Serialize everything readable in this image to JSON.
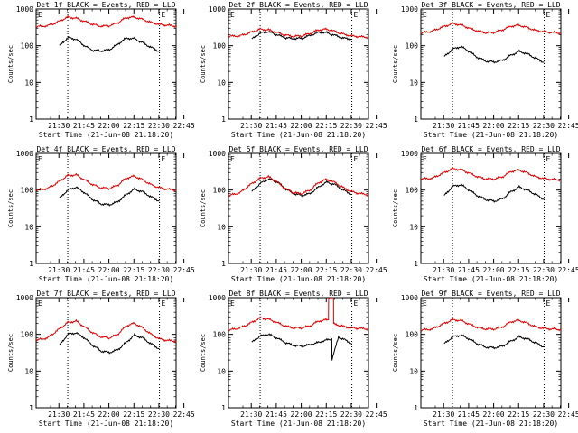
{
  "chart_data": [
    {
      "type": "line",
      "title": "Det 1f BLACK = Events, RED = LLD",
      "xlabel": "Start Time (21-Jun-08 21:18:20)",
      "ylabel": "Counts/sec",
      "y_scale": "log",
      "ylim": [
        1,
        1000
      ],
      "y_ticks": [
        "1",
        "10",
        "100",
        "1000"
      ],
      "x_ticks": [
        "21:30",
        "21:45",
        "22:00",
        "22:15",
        "22:30",
        "22:45"
      ],
      "xlim_min": [
        -2,
        82
      ],
      "markers": [
        "E",
        "E"
      ],
      "marker_lines_min": [
        17,
        72
      ],
      "series": [
        {
          "color": "#000000",
          "x": [
            12,
            17,
            22,
            27,
            32,
            37,
            42,
            47,
            52,
            57,
            62,
            67,
            72
          ],
          "y": [
            100,
            165,
            150,
            100,
            75,
            72,
            78,
            110,
            160,
            155,
            120,
            90,
            70
          ]
        },
        {
          "color": "#e00000",
          "x": [
            -2,
            5,
            10,
            17,
            22,
            27,
            32,
            37,
            42,
            47,
            52,
            57,
            62,
            67,
            72,
            77,
            82
          ],
          "y": [
            330,
            350,
            420,
            600,
            560,
            460,
            380,
            340,
            350,
            420,
            580,
            600,
            520,
            430,
            380,
            360,
            340
          ]
        }
      ]
    },
    {
      "type": "line",
      "title": "Det 2f BLACK = Events, RED = LLD",
      "xlabel": "Start Time (21-Jun-08 21:18:20)",
      "ylabel": "Counts/sec",
      "y_scale": "log",
      "ylim": [
        1,
        1000
      ],
      "y_ticks": [
        "1",
        "10",
        "100",
        "1000"
      ],
      "x_ticks": [
        "21:30",
        "21:45",
        "22:00",
        "22:15",
        "22:30",
        "22:45"
      ],
      "xlim_min": [
        -2,
        82
      ],
      "markers": [
        "E",
        "E"
      ],
      "marker_lines_min": [
        17,
        72
      ],
      "series": [
        {
          "color": "#000000",
          "x": [
            12,
            17,
            22,
            27,
            32,
            37,
            42,
            47,
            52,
            57,
            62,
            67,
            72
          ],
          "y": [
            150,
            220,
            240,
            200,
            165,
            155,
            160,
            190,
            230,
            225,
            190,
            160,
            150
          ]
        },
        {
          "color": "#e00000",
          "x": [
            -2,
            5,
            10,
            17,
            22,
            27,
            32,
            37,
            42,
            47,
            52,
            57,
            62,
            67,
            72,
            77,
            82
          ],
          "y": [
            180,
            185,
            220,
            280,
            270,
            230,
            195,
            180,
            185,
            215,
            270,
            280,
            245,
            205,
            185,
            175,
            170
          ]
        }
      ]
    },
    {
      "type": "line",
      "title": "Det 3f BLACK = Events, RED = LLD",
      "xlabel": "Start Time (21-Jun-08 21:18:20)",
      "ylabel": "Counts/sec",
      "y_scale": "log",
      "ylim": [
        1,
        1000
      ],
      "y_ticks": [
        "1",
        "10",
        "100",
        "1000"
      ],
      "x_ticks": [
        "21:30",
        "21:45",
        "22:00",
        "22:15",
        "22:30",
        "22:45"
      ],
      "xlim_min": [
        -2,
        82
      ],
      "markers": [
        "E",
        "E"
      ],
      "marker_lines_min": [
        17,
        72
      ],
      "series": [
        {
          "color": "#000000",
          "x": [
            12,
            17,
            22,
            27,
            32,
            37,
            42,
            47,
            52,
            57,
            62,
            67,
            72
          ],
          "y": [
            50,
            80,
            95,
            70,
            48,
            38,
            36,
            40,
            55,
            70,
            60,
            45,
            35
          ]
        },
        {
          "color": "#e00000",
          "x": [
            -2,
            5,
            10,
            17,
            22,
            27,
            32,
            37,
            42,
            47,
            52,
            57,
            62,
            67,
            72,
            77,
            82
          ],
          "y": [
            220,
            250,
            310,
            400,
            370,
            300,
            250,
            225,
            230,
            270,
            340,
            360,
            310,
            260,
            240,
            230,
            220
          ]
        }
      ]
    },
    {
      "type": "line",
      "title": "Det 4f BLACK = Events, RED = LLD",
      "xlabel": "Start Time (21-Jun-08 21:18:20)",
      "ylabel": "Counts/sec",
      "y_scale": "log",
      "ylim": [
        1,
        1000
      ],
      "y_ticks": [
        "1",
        "10",
        "100",
        "1000"
      ],
      "x_ticks": [
        "21:30",
        "21:45",
        "22:00",
        "22:15",
        "22:30",
        "22:45"
      ],
      "xlim_min": [
        -2,
        82
      ],
      "markers": [
        "E",
        "E"
      ],
      "marker_lines_min": [
        17,
        72
      ],
      "series": [
        {
          "color": "#000000",
          "x": [
            12,
            17,
            22,
            27,
            32,
            37,
            42,
            47,
            52,
            57,
            62,
            67,
            72
          ],
          "y": [
            60,
            100,
            120,
            85,
            55,
            42,
            40,
            48,
            75,
            105,
            90,
            65,
            50
          ]
        },
        {
          "color": "#e00000",
          "x": [
            -2,
            5,
            10,
            17,
            22,
            27,
            32,
            37,
            42,
            47,
            52,
            57,
            62,
            67,
            72,
            77,
            82
          ],
          "y": [
            100,
            110,
            150,
            250,
            260,
            190,
            140,
            115,
            110,
            135,
            210,
            240,
            190,
            140,
            115,
            105,
            100
          ]
        }
      ]
    },
    {
      "type": "line",
      "title": "Det 5f BLACK = Events, RED = LLD",
      "xlabel": "Start Time (21-Jun-08 21:18:20)",
      "ylabel": "Counts/sec",
      "y_scale": "log",
      "ylim": [
        1,
        1000
      ],
      "y_ticks": [
        "1",
        "10",
        "100",
        "1000"
      ],
      "x_ticks": [
        "21:30",
        "21:45",
        "22:00",
        "22:15",
        "22:30",
        "22:45"
      ],
      "xlim_min": [
        -2,
        82
      ],
      "markers": [
        "E",
        "E"
      ],
      "marker_lines_min": [
        17,
        72
      ],
      "series": [
        {
          "color": "#000000",
          "x": [
            12,
            17,
            22,
            27,
            32,
            37,
            42,
            47,
            52,
            57,
            62,
            67,
            72
          ],
          "y": [
            90,
            150,
            200,
            170,
            110,
            80,
            72,
            80,
            120,
            165,
            140,
            100,
            75
          ]
        },
        {
          "color": "#e00000",
          "x": [
            -2,
            5,
            10,
            17,
            22,
            27,
            32,
            37,
            42,
            47,
            52,
            57,
            62,
            67,
            72,
            77,
            82
          ],
          "y": [
            70,
            85,
            130,
            210,
            230,
            170,
            110,
            85,
            80,
            100,
            160,
            195,
            160,
            115,
            90,
            80,
            75
          ]
        }
      ]
    },
    {
      "type": "line",
      "title": "Det 6f BLACK = Events, RED = LLD",
      "xlabel": "Start Time (21-Jun-08 21:18:20)",
      "ylabel": "Counts/sec",
      "y_scale": "log",
      "ylim": [
        1,
        1000
      ],
      "y_ticks": [
        "1",
        "10",
        "100",
        "1000"
      ],
      "x_ticks": [
        "21:30",
        "21:45",
        "22:00",
        "22:15",
        "22:30",
        "22:45"
      ],
      "xlim_min": [
        -2,
        82
      ],
      "markers": [
        "E",
        "E"
      ],
      "marker_lines_min": [
        17,
        72
      ],
      "series": [
        {
          "color": "#000000",
          "x": [
            12,
            17,
            22,
            27,
            32,
            37,
            42,
            47,
            52,
            57,
            62,
            67,
            72
          ],
          "y": [
            70,
            125,
            140,
            100,
            70,
            55,
            50,
            58,
            90,
            120,
            100,
            75,
            55
          ]
        },
        {
          "color": "#e00000",
          "x": [
            -2,
            5,
            10,
            17,
            22,
            27,
            32,
            37,
            42,
            47,
            52,
            57,
            62,
            67,
            72,
            77,
            82
          ],
          "y": [
            200,
            210,
            270,
            380,
            360,
            290,
            230,
            200,
            200,
            230,
            320,
            350,
            290,
            230,
            205,
            195,
            190
          ]
        }
      ]
    },
    {
      "type": "line",
      "title": "Det 7f BLACK = Events, RED = LLD",
      "xlabel": "Start Time (21-Jun-08 21:18:20)",
      "ylabel": "Counts/sec",
      "y_scale": "log",
      "ylim": [
        1,
        1000
      ],
      "y_ticks": [
        "1",
        "10",
        "100",
        "1000"
      ],
      "x_ticks": [
        "21:30",
        "21:45",
        "22:00",
        "22:15",
        "22:30",
        "22:45"
      ],
      "xlim_min": [
        -2,
        82
      ],
      "markers": [
        "E",
        "E"
      ],
      "marker_lines_min": [
        17,
        72
      ],
      "series": [
        {
          "color": "#000000",
          "x": [
            12,
            17,
            22,
            27,
            32,
            37,
            42,
            47,
            52,
            57,
            62,
            67,
            72
          ],
          "y": [
            50,
            100,
            110,
            80,
            50,
            35,
            32,
            38,
            60,
            95,
            80,
            55,
            40
          ]
        },
        {
          "color": "#e00000",
          "x": [
            -2,
            5,
            10,
            17,
            22,
            27,
            32,
            37,
            42,
            47,
            52,
            57,
            62,
            67,
            72,
            77,
            82
          ],
          "y": [
            70,
            80,
            120,
            210,
            230,
            160,
            110,
            85,
            80,
            100,
            170,
            200,
            150,
            100,
            75,
            68,
            65
          ]
        }
      ]
    },
    {
      "type": "line",
      "title": "Det 8f BLACK = Events, RED = LLD",
      "xlabel": "Start Time (21-Jun-08 21:18:20)",
      "ylabel": "Counts/sec",
      "y_scale": "log",
      "ylim": [
        1,
        1000
      ],
      "y_ticks": [
        "1",
        "10",
        "100",
        "1000"
      ],
      "x_ticks": [
        "21:30",
        "21:45",
        "22:00",
        "22:15",
        "22:30",
        "22:45"
      ],
      "xlim_min": [
        -2,
        82
      ],
      "markers": [
        "E",
        "E"
      ],
      "marker_lines_min": [
        17,
        72
      ],
      "series": [
        {
          "color": "#000000",
          "x": [
            12,
            17,
            22,
            27,
            32,
            37,
            42,
            47,
            52,
            57,
            60,
            60.1,
            64,
            68,
            72
          ],
          "y": [
            60,
            90,
            100,
            80,
            60,
            50,
            48,
            52,
            60,
            70,
            75,
            20,
            85,
            70,
            55
          ]
        },
        {
          "color": "#e00000",
          "x": [
            -2,
            5,
            10,
            17,
            22,
            27,
            32,
            37,
            42,
            47,
            52,
            57,
            58,
            58.1,
            61,
            61.1,
            64,
            68,
            72,
            77,
            82
          ],
          "y": [
            130,
            150,
            190,
            280,
            260,
            210,
            170,
            150,
            150,
            170,
            230,
            250,
            250,
            1000,
            1000,
            200,
            180,
            160,
            150,
            145,
            140
          ]
        }
      ]
    },
    {
      "type": "line",
      "title": "Det 9f BLACK = Events, RED = LLD",
      "xlabel": "Start Time (21-Jun-08 21:18:20)",
      "ylabel": "Counts/sec",
      "y_scale": "log",
      "ylim": [
        1,
        1000
      ],
      "y_ticks": [
        "1",
        "10",
        "100",
        "1000"
      ],
      "x_ticks": [
        "21:30",
        "21:45",
        "22:00",
        "22:15",
        "22:30",
        "22:45"
      ],
      "xlim_min": [
        -2,
        82
      ],
      "markers": [
        "E",
        "E"
      ],
      "marker_lines_min": [
        17,
        72
      ],
      "series": [
        {
          "color": "#000000",
          "x": [
            12,
            17,
            22,
            27,
            32,
            37,
            42,
            47,
            52,
            57,
            62,
            67,
            72
          ],
          "y": [
            55,
            85,
            95,
            75,
            55,
            45,
            43,
            48,
            65,
            85,
            75,
            58,
            45
          ]
        },
        {
          "color": "#e00000",
          "x": [
            -2,
            5,
            10,
            17,
            22,
            27,
            32,
            37,
            42,
            47,
            52,
            57,
            62,
            67,
            72,
            77,
            82
          ],
          "y": [
            130,
            140,
            180,
            250,
            240,
            190,
            155,
            140,
            140,
            160,
            220,
            240,
            200,
            160,
            145,
            140,
            135
          ]
        }
      ]
    }
  ]
}
